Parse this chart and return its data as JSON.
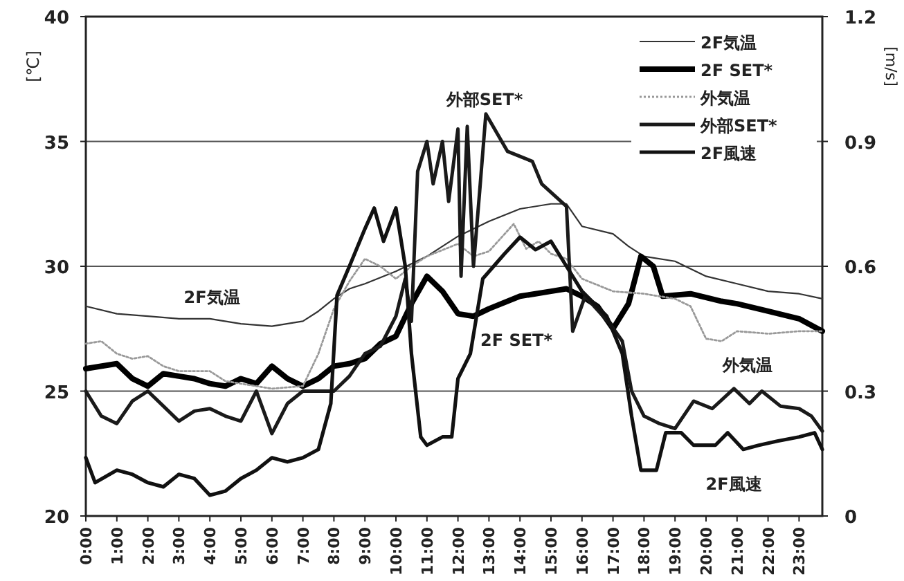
{
  "chart_data": {
    "type": "line",
    "xlim": [
      0,
      23.75
    ],
    "xticks": [
      {
        "value": 0,
        "label": "0:00"
      },
      {
        "value": 1,
        "label": "1:00"
      },
      {
        "value": 2,
        "label": "2:00"
      },
      {
        "value": 3,
        "label": "3:00"
      },
      {
        "value": 4,
        "label": "4:00"
      },
      {
        "value": 5,
        "label": "5:00"
      },
      {
        "value": 6,
        "label": "6:00"
      },
      {
        "value": 7,
        "label": "7:00"
      },
      {
        "value": 8,
        "label": "8:00"
      },
      {
        "value": 9,
        "label": "9:00"
      },
      {
        "value": 10,
        "label": "10:00"
      },
      {
        "value": 11,
        "label": "11:00"
      },
      {
        "value": 12,
        "label": "12:00"
      },
      {
        "value": 13,
        "label": "13:00"
      },
      {
        "value": 14,
        "label": "14:00"
      },
      {
        "value": 15,
        "label": "15:00"
      },
      {
        "value": 16,
        "label": "16:00"
      },
      {
        "value": 17,
        "label": "17:00"
      },
      {
        "value": 18,
        "label": "18:00"
      },
      {
        "value": 19,
        "label": "19:00"
      },
      {
        "value": 20,
        "label": "20:00"
      },
      {
        "value": 21,
        "label": "21:00"
      },
      {
        "value": 22,
        "label": "22:00"
      },
      {
        "value": 23,
        "label": "23:00"
      }
    ],
    "ylim": [
      20,
      40
    ],
    "yticks": [
      20,
      25,
      30,
      35,
      40
    ],
    "y2lim": [
      0,
      1.2
    ],
    "y2ticks": [
      0,
      0.3,
      0.6,
      0.9,
      1.2
    ],
    "ylabel": "[℃]",
    "y2label": "[m/s]",
    "grid": "y",
    "legend": "top right",
    "marker": "none",
    "series": [
      {
        "name": "2F気温",
        "color": "#333333",
        "x": [
          0,
          1,
          2,
          3,
          4,
          5,
          6,
          7,
          7.5,
          8,
          8.5,
          9,
          10,
          11,
          12,
          13,
          14,
          15,
          15.5,
          16,
          17,
          17.5,
          18,
          19,
          20,
          21,
          22,
          23,
          23.75
        ],
        "values": [
          28.4,
          28.1,
          28.0,
          27.9,
          27.9,
          27.7,
          27.6,
          27.8,
          28.2,
          28.7,
          29.1,
          29.3,
          29.8,
          30.4,
          31.2,
          31.8,
          32.3,
          32.5,
          32.5,
          31.6,
          31.3,
          30.8,
          30.4,
          30.2,
          29.6,
          29.3,
          29.0,
          28.9,
          28.7
        ]
      },
      {
        "name": "2F SET*",
        "color": "#000000",
        "x": [
          0,
          1,
          1.5,
          2,
          2.5,
          3,
          3.5,
          4,
          4.5,
          5,
          5.5,
          6,
          6.5,
          7,
          7.5,
          8,
          8.5,
          9,
          9.5,
          10,
          10.5,
          11,
          11.5,
          12,
          12.5,
          13,
          14,
          14.5,
          15,
          15.5,
          16,
          16.5,
          17,
          17.5,
          17.9,
          18.3,
          18.6,
          19.5,
          20.5,
          21,
          22,
          23,
          23.75
        ],
        "values": [
          25.9,
          26.1,
          25.5,
          25.2,
          25.7,
          25.6,
          25.5,
          25.3,
          25.2,
          25.5,
          25.3,
          26.0,
          25.5,
          25.2,
          25.5,
          26.0,
          26.1,
          26.3,
          26.9,
          27.2,
          28.5,
          29.6,
          29.0,
          28.1,
          28.0,
          28.3,
          28.8,
          28.9,
          29.0,
          29.1,
          28.8,
          28.4,
          27.5,
          28.5,
          30.4,
          30.0,
          28.8,
          28.9,
          28.6,
          28.5,
          28.2,
          27.9,
          27.4
        ]
      },
      {
        "name": "外気温",
        "color": "#999999",
        "line_style": "dotted",
        "x": [
          0,
          0.5,
          1,
          1.5,
          2,
          2.5,
          3,
          4,
          4.5,
          5,
          6,
          7,
          7.5,
          8,
          8.5,
          9,
          9.5,
          10,
          10.5,
          11,
          12,
          12.5,
          13,
          13.8,
          14.2,
          14.6,
          15,
          15.5,
          16,
          17,
          18,
          19,
          19.5,
          20,
          20.5,
          21,
          22,
          23,
          23.75
        ],
        "values": [
          26.9,
          27.0,
          26.5,
          26.3,
          26.4,
          26.0,
          25.8,
          25.8,
          25.4,
          25.3,
          25.1,
          25.2,
          26.5,
          28.3,
          29.4,
          30.3,
          30.0,
          29.5,
          30.0,
          30.4,
          30.9,
          30.4,
          30.6,
          31.7,
          30.7,
          31.0,
          30.5,
          30.3,
          29.5,
          29.0,
          28.9,
          28.7,
          28.4,
          27.1,
          27.0,
          27.4,
          27.3,
          27.4,
          27.4
        ]
      },
      {
        "name": "外部SET*",
        "color": "#1a1a1a",
        "x": [
          0,
          0.5,
          1,
          1.5,
          2,
          2.5,
          3,
          3.5,
          4,
          4.5,
          5,
          5.5,
          6,
          6.5,
          7,
          7.5,
          8,
          8.5,
          9,
          9.5,
          10,
          10.3,
          10.5,
          10.7,
          11,
          11.2,
          11.5,
          11.7,
          12,
          12.1,
          12.3,
          12.5,
          12.7,
          12.9,
          13.6,
          14.4,
          14.7,
          15.5,
          15.7,
          16.1,
          16.9,
          17.3,
          17.6,
          18,
          18.5,
          19,
          19.6,
          20.2,
          20.9,
          21.4,
          21.8,
          22.4,
          23,
          23.4,
          23.75
        ],
        "values": [
          25.0,
          24.0,
          23.7,
          24.6,
          25.0,
          24.4,
          23.8,
          24.2,
          24.3,
          24.0,
          23.8,
          25.0,
          23.3,
          24.5,
          25.0,
          25.0,
          25.0,
          25.6,
          26.5,
          26.8,
          28.0,
          29.5,
          27.8,
          33.8,
          35.0,
          33.3,
          35.0,
          32.6,
          35.5,
          29.6,
          35.6,
          30.0,
          33.0,
          36.1,
          34.6,
          34.2,
          33.3,
          32.4,
          27.4,
          28.8,
          27.7,
          27.0,
          25.0,
          24.0,
          23.7,
          23.5,
          24.6,
          24.3,
          25.1,
          24.5,
          25.0,
          24.4,
          24.3,
          24.0,
          23.4
        ]
      },
      {
        "name": "2F風速",
        "color": "#111111",
        "axis": "y2",
        "x": [
          0,
          0.3,
          1,
          1.5,
          2,
          2.5,
          3,
          3.5,
          4,
          4.5,
          5,
          5.5,
          6,
          6.5,
          7,
          7.5,
          7.9,
          8.1,
          8.5,
          9,
          9.3,
          9.6,
          10,
          10.3,
          10.5,
          10.8,
          11,
          11.5,
          11.8,
          12,
          12.4,
          12.8,
          13.5,
          14,
          14.5,
          15,
          15.5,
          16,
          16.8,
          17.3,
          17.6,
          17.9,
          18.4,
          18.7,
          19.2,
          19.6,
          20.3,
          20.7,
          21.2,
          21.7,
          22.3,
          23,
          23.5,
          23.75
        ],
        "values": [
          0.14,
          0.08,
          0.11,
          0.1,
          0.08,
          0.07,
          0.1,
          0.09,
          0.05,
          0.06,
          0.09,
          0.11,
          0.14,
          0.13,
          0.14,
          0.16,
          0.27,
          0.53,
          0.6,
          0.69,
          0.74,
          0.66,
          0.74,
          0.6,
          0.39,
          0.19,
          0.17,
          0.19,
          0.19,
          0.33,
          0.39,
          0.57,
          0.63,
          0.67,
          0.64,
          0.66,
          0.6,
          0.54,
          0.48,
          0.39,
          0.24,
          0.11,
          0.11,
          0.2,
          0.2,
          0.17,
          0.17,
          0.2,
          0.16,
          0.17,
          0.18,
          0.19,
          0.2,
          0.16
        ]
      }
    ],
    "annotations": [
      "2F気温",
      "外部SET*",
      "2F SET*",
      "外気温",
      "2F風速"
    ]
  }
}
